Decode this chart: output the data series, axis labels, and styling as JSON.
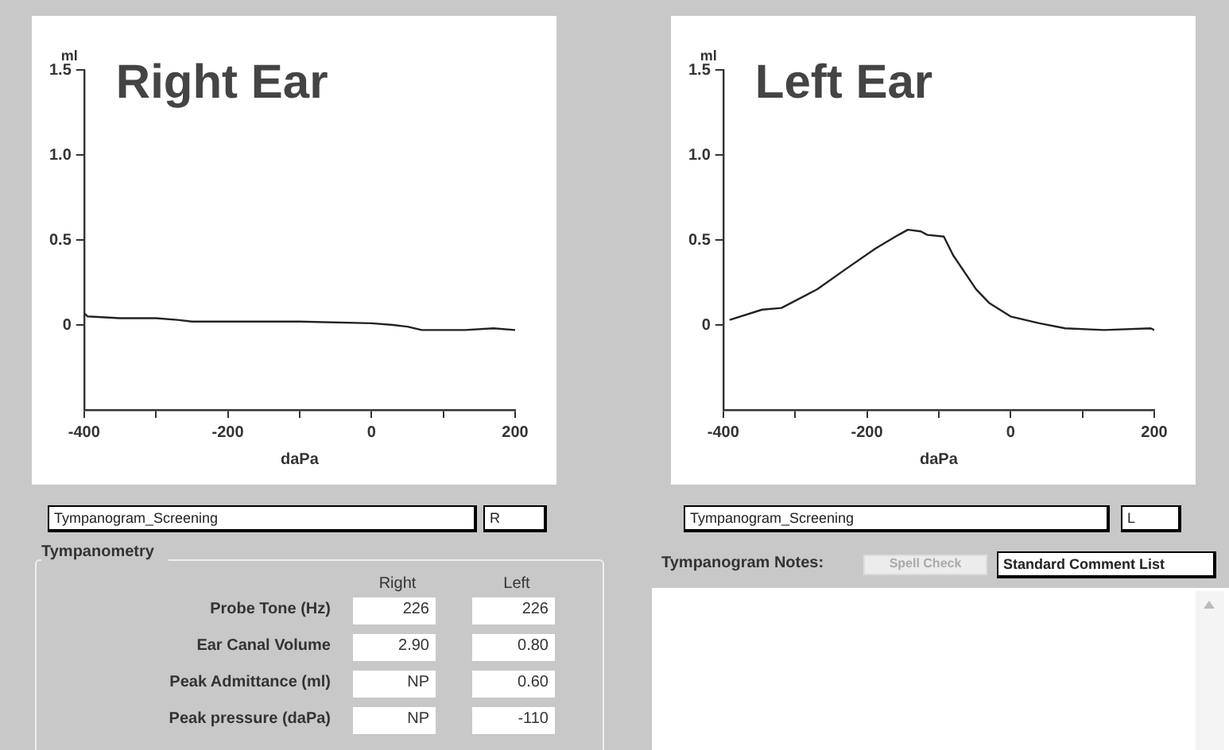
{
  "chart_data": [
    {
      "type": "line",
      "title": "Right Ear",
      "xlabel": "daPa",
      "ylabel": "ml",
      "xlim": [
        -400,
        200
      ],
      "ylim": [
        -0.5,
        1.5
      ],
      "xticks": [
        -400,
        {
          "value": -300,
          "label": null
        },
        -200,
        {
          "value": -100,
          "label": null
        },
        0,
        {
          "value": 100,
          "label": null
        },
        200
      ],
      "yticks": [
        0,
        0.5,
        {
          "value": 1,
          "label": "1.0"
        },
        1.5
      ],
      "series": [
        {
          "color": "#222222",
          "x": [
            -400,
            -395,
            -350,
            -300,
            -270,
            -250,
            -200,
            -100,
            0,
            30,
            50,
            70,
            100,
            130,
            170,
            200
          ],
          "values": [
            0.07,
            0.05,
            0.04,
            0.04,
            0.03,
            0.02,
            0.02,
            0.02,
            0.01,
            0,
            -0.01,
            -0.03,
            -0.03,
            -0.03,
            -0.02,
            -0.03
          ]
        }
      ]
    },
    {
      "type": "line",
      "title": "Left Ear",
      "xlabel": "daPa",
      "ylabel": "ml",
      "xlim": [
        -400,
        200
      ],
      "ylim": [
        -0.5,
        1.5
      ],
      "xticks": [
        -400,
        {
          "value": -300,
          "label": null
        },
        -200,
        {
          "value": -100,
          "label": null
        },
        0,
        {
          "value": 100,
          "label": null
        },
        200
      ],
      "yticks": [
        0,
        0.5,
        {
          "value": 1,
          "label": "1.0"
        },
        1.5
      ],
      "series": [
        {
          "color": "#222222",
          "x": [
            -391,
            -346,
            -319,
            -269,
            -229,
            -188,
            -156,
            -143,
            -125,
            -116,
            -93,
            -80,
            -48,
            -30,
            0,
            40,
            76,
            130,
            195,
            200
          ],
          "values": [
            0.03,
            0.09,
            0.1,
            0.21,
            0.33,
            0.45,
            0.53,
            0.56,
            0.55,
            0.53,
            0.52,
            0.41,
            0.21,
            0.13,
            0.05,
            0.01,
            -0.02,
            -0.03,
            -0.02,
            -0.03
          ]
        }
      ]
    },
    {
      "type": "other",
      "annotations": [
        "Tympanogram_Screening",
        "R",
        "Tympanometry",
        "Right",
        "Left",
        "Probe Tone (Hz)",
        "226",
        "226",
        "Ear Canal Volume",
        "2.90",
        "0.80",
        "Peak Admittance (ml)",
        "NP",
        "0.60",
        "Peak pressure (daPa)",
        "NP",
        "-110",
        "Tympanogram_Screening",
        "L",
        "Tympanogram Notes:",
        "Spell Check",
        "Standard Comment List"
      ]
    }
  ]
}
